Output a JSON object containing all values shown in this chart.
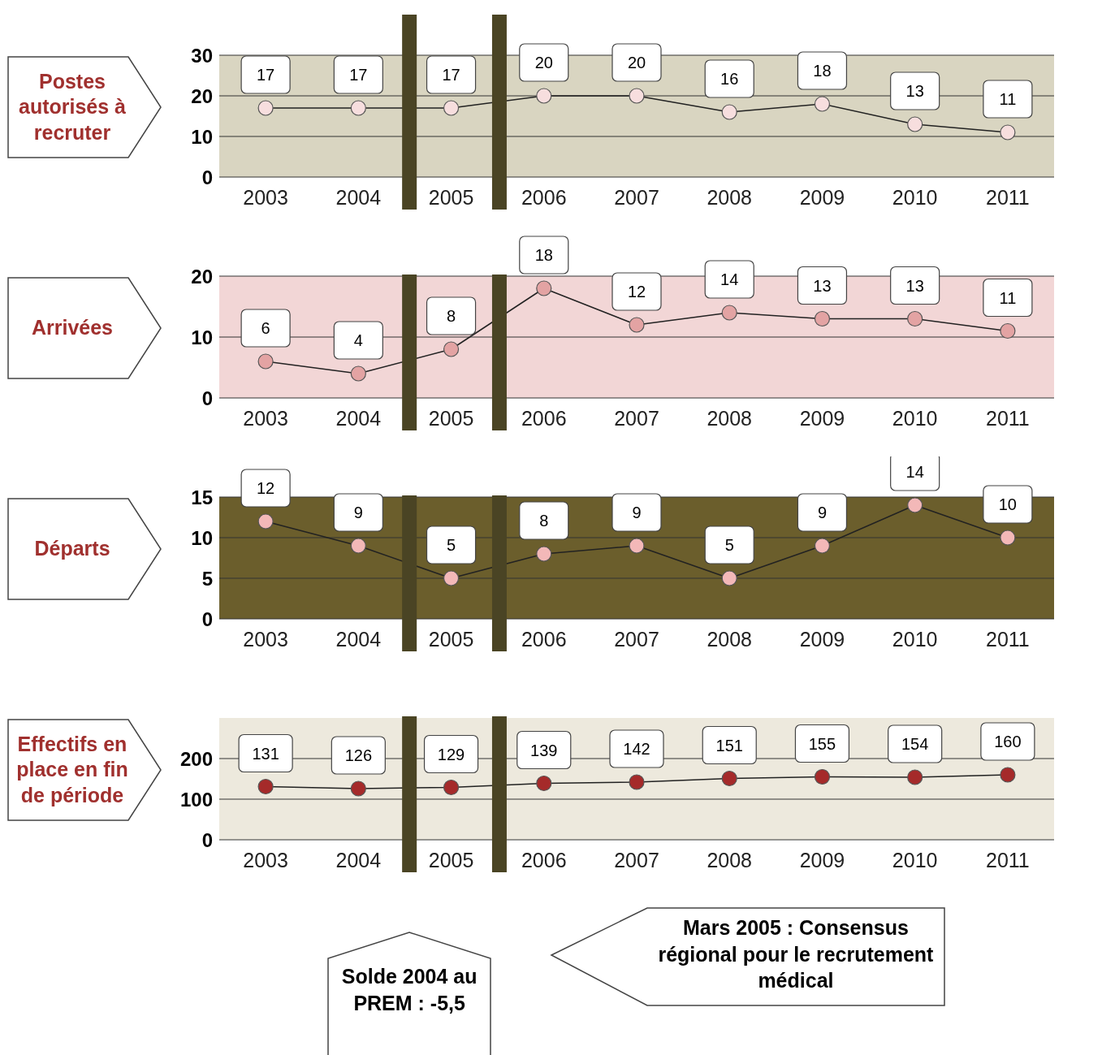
{
  "chart_data": [
    {
      "type": "line",
      "ylabel": "Postes autorisés à recruter",
      "x": [
        2003,
        2004,
        2005,
        2006,
        2007,
        2008,
        2009,
        2010,
        2011
      ],
      "series": [
        {
          "color": "#f7dede",
          "values": [
            17,
            17,
            17,
            20,
            20,
            16,
            18,
            13,
            11
          ]
        }
      ],
      "xlim": [
        2002.5,
        2011.5
      ],
      "xticks": [
        2003,
        2004,
        2005,
        2006,
        2007,
        2008,
        2009,
        2010,
        2011
      ],
      "ylim": [
        0,
        30
      ],
      "yticks": [
        0,
        10,
        20,
        30
      ],
      "grid": "y",
      "marker": "circle",
      "line_style": "solid",
      "data_labels": true,
      "bands": [
        {
          "axis": "y",
          "from": 0,
          "to": 30,
          "color": "#d9d5c1"
        }
      ],
      "ref_lines": [
        {
          "axis": "x",
          "value": 2004.55,
          "color": "#4a4424"
        },
        {
          "axis": "x",
          "value": 2005.52,
          "color": "#4a4424"
        }
      ]
    },
    {
      "type": "line",
      "ylabel": "Arrivées",
      "x": [
        2003,
        2004,
        2005,
        2006,
        2007,
        2008,
        2009,
        2010,
        2011
      ],
      "series": [
        {
          "color": "#e3a3a3",
          "values": [
            6,
            4,
            8,
            18,
            12,
            14,
            13,
            13,
            11
          ]
        }
      ],
      "xlim": [
        2002.5,
        2011.5
      ],
      "xticks": [
        2003,
        2004,
        2005,
        2006,
        2007,
        2008,
        2009,
        2010,
        2011
      ],
      "ylim": [
        0,
        20
      ],
      "yticks": [
        0,
        10,
        20
      ],
      "grid": "y",
      "marker": "circle",
      "line_style": "solid",
      "data_labels": true,
      "bands": [
        {
          "axis": "y",
          "from": 0,
          "to": 20,
          "color": "#f2d6d6"
        }
      ],
      "ref_lines": [
        {
          "axis": "x",
          "value": 2004.55,
          "color": "#4a4424"
        },
        {
          "axis": "x",
          "value": 2005.52,
          "color": "#4a4424"
        }
      ]
    },
    {
      "type": "line",
      "ylabel": "Départs",
      "x": [
        2003,
        2004,
        2005,
        2006,
        2007,
        2008,
        2009,
        2010,
        2011
      ],
      "series": [
        {
          "color": "#f3b8b8",
          "values": [
            12,
            9,
            5,
            8,
            9,
            5,
            9,
            14,
            10
          ]
        }
      ],
      "xlim": [
        2002.5,
        2011.5
      ],
      "xticks": [
        2003,
        2004,
        2005,
        2006,
        2007,
        2008,
        2009,
        2010,
        2011
      ],
      "ylim": [
        0,
        15
      ],
      "yticks": [
        0,
        5,
        10,
        15
      ],
      "grid": "y",
      "marker": "circle",
      "line_style": "solid",
      "data_labels": true,
      "bands": [
        {
          "axis": "y",
          "from": 0,
          "to": 15,
          "color": "#6b5e2c"
        }
      ],
      "ref_lines": [
        {
          "axis": "x",
          "value": 2004.55,
          "color": "#4a4424"
        },
        {
          "axis": "x",
          "value": 2005.52,
          "color": "#4a4424"
        }
      ]
    },
    {
      "type": "line",
      "ylabel": "Effectifs en place en fin de période",
      "x": [
        2003,
        2004,
        2005,
        2006,
        2007,
        2008,
        2009,
        2010,
        2011
      ],
      "series": [
        {
          "color": "#a52a2a",
          "values": [
            131,
            126,
            129,
            139,
            142,
            151,
            155,
            154,
            160
          ]
        }
      ],
      "xlim": [
        2002.5,
        2011.5
      ],
      "xticks": [
        2003,
        2004,
        2005,
        2006,
        2007,
        2008,
        2009,
        2010,
        2011
      ],
      "ylim": [
        0,
        300
      ],
      "yticks": [
        0,
        100,
        200
      ],
      "grid": "y",
      "marker": "circle",
      "line_style": "solid",
      "data_labels": true,
      "bands": [
        {
          "axis": "y",
          "from": 0,
          "to": 300,
          "color": "#ede9dd"
        }
      ],
      "ref_lines": [
        {
          "axis": "x",
          "value": 2004.55,
          "color": "#4a4424"
        },
        {
          "axis": "x",
          "value": 2005.52,
          "color": "#4a4424"
        }
      ],
      "annotations": [
        "Solde 2004 au PREM : -5,5",
        "Mars 2005 : Consensus régional pour le recrutement médical"
      ]
    }
  ]
}
